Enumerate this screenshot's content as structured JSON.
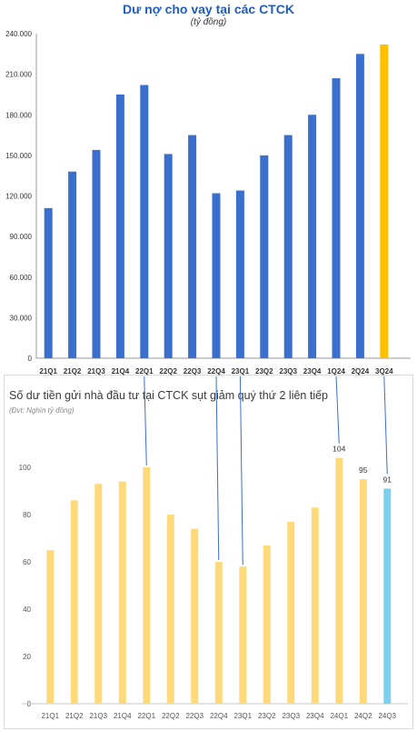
{
  "chart_data": [
    {
      "type": "bar",
      "title": "Dư nợ cho vay tại các CTCK",
      "subtitle": "(tỷ đồng)",
      "categories": [
        "21Q1",
        "21Q2",
        "21Q3",
        "21Q4",
        "22Q1",
        "22Q2",
        "22Q3",
        "22Q4",
        "23Q1",
        "23Q2",
        "23Q3",
        "23Q4",
        "1Q24",
        "2Q24",
        "3Q24"
      ],
      "values": [
        111000,
        138000,
        154000,
        195000,
        202000,
        151000,
        165000,
        122000,
        124000,
        150000,
        165000,
        180000,
        207000,
        225000,
        232000
      ],
      "y_ticks": [
        "0",
        "30.000",
        "60.000",
        "90.000",
        "120.000",
        "150.000",
        "180.000",
        "210.000",
        "240.000"
      ],
      "ylim": [
        0,
        240000
      ],
      "colors": {
        "bar": "#3a6fcd",
        "highlight": "#ffc000",
        "title": "#1f5cc4"
      },
      "highlight_index": 14
    },
    {
      "type": "bar",
      "title": "Số dư tiền gửi nhà đầu tư tại CTCK sụt giảm quý thứ 2 liên tiếp",
      "subtitle": "(Đvt: Nghìn tỷ đồng)",
      "categories": [
        "21Q1",
        "21Q2",
        "21Q3",
        "21Q4",
        "22Q1",
        "22Q2",
        "22Q3",
        "22Q4",
        "23Q1",
        "23Q2",
        "23Q3",
        "23Q4",
        "24Q1",
        "24Q2",
        "24Q3"
      ],
      "values": [
        65,
        86,
        93,
        94,
        100,
        80,
        74,
        60,
        58,
        67,
        77,
        83,
        104,
        95,
        91
      ],
      "data_labels": {
        "12": "104",
        "13": "95",
        "14": "91"
      },
      "y_ticks": [
        "0",
        "20",
        "40",
        "60",
        "80",
        "100"
      ],
      "ylim": [
        0,
        120
      ],
      "colors": {
        "bar": "#ffd97a",
        "highlight": "#7fd0ef",
        "connector": "#3a6fcd"
      },
      "highlight_index": 14
    }
  ]
}
